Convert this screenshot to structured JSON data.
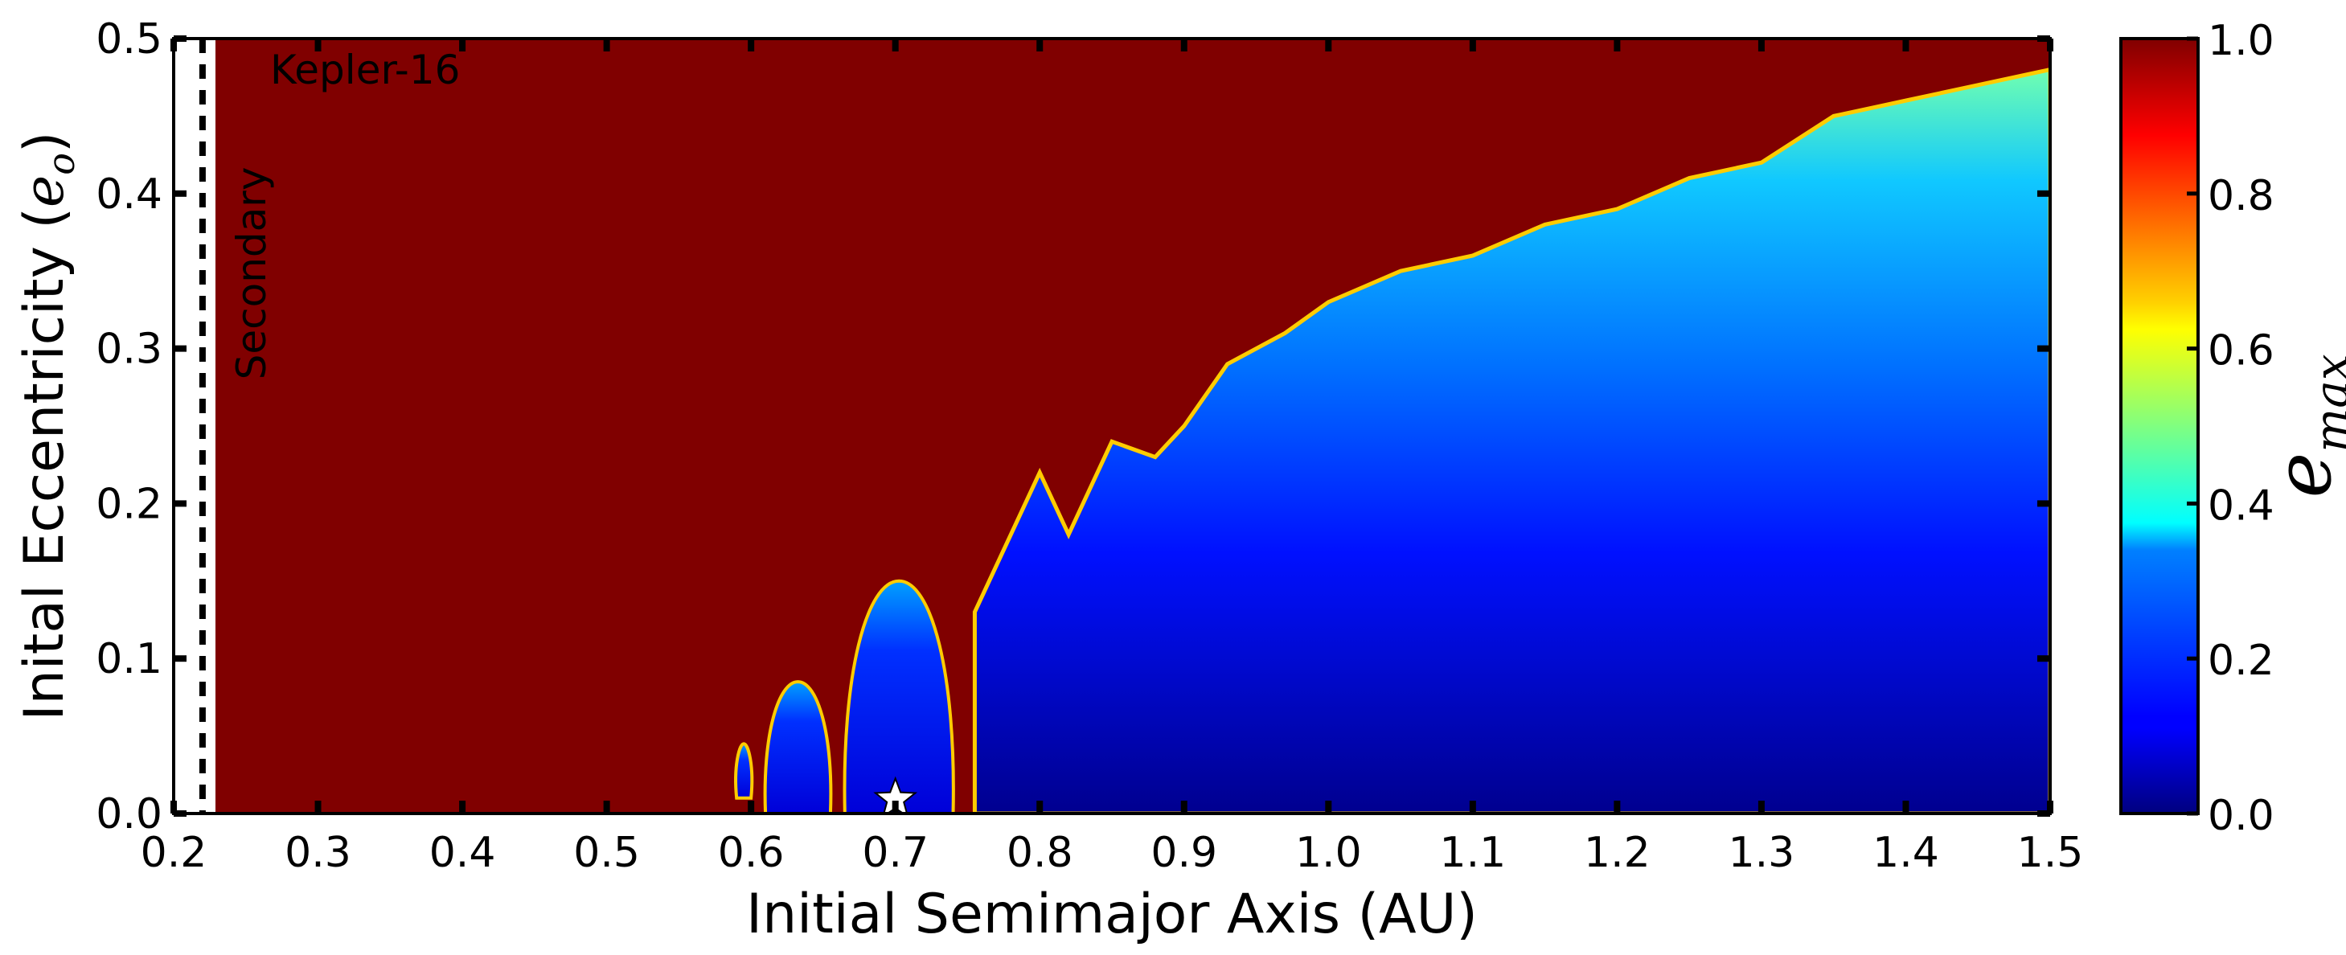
{
  "chart_data": {
    "type": "heatmap",
    "title": "",
    "xlabel": "Initial Semimajor Axis (AU)",
    "ylabel_main": "Inital Eccentricity (",
    "ylabel_var": "e",
    "ylabel_sub": "o",
    "ylabel_end": ")",
    "xlim": [
      0.2,
      1.5
    ],
    "ylim": [
      0.0,
      0.5
    ],
    "x_ticks": [
      "0.2",
      "0.3",
      "0.4",
      "0.5",
      "0.6",
      "0.7",
      "0.8",
      "0.9",
      "1.0",
      "1.1",
      "1.2",
      "1.3",
      "1.4",
      "1.5"
    ],
    "y_ticks": [
      "0.0",
      "0.1",
      "0.2",
      "0.3",
      "0.4",
      "0.5"
    ],
    "colorbar": {
      "label_var": "e",
      "label_sub": "max",
      "range": [
        0.0,
        1.0
      ],
      "ticks": [
        "0.0",
        "0.2",
        "0.4",
        "0.6",
        "0.8",
        "1.0"
      ],
      "colormap": "jet"
    },
    "annotations": {
      "system": "Kepler-16",
      "secondary_label": "Secondary",
      "secondary_a": 0.22,
      "unstable_exclusion_a": 0.23,
      "planet_marker": {
        "a": 0.7,
        "e": 0.007
      }
    },
    "stability_boundary": {
      "description_free": false,
      "a": [
        0.8,
        0.82,
        0.85,
        0.88,
        0.9,
        0.93,
        0.97,
        1.0,
        1.05,
        1.1,
        1.15,
        1.2,
        1.25,
        1.3,
        1.35,
        1.4,
        1.45,
        1.5
      ],
      "e_max_stable": [
        0.22,
        0.18,
        0.24,
        0.23,
        0.25,
        0.29,
        0.31,
        0.33,
        0.35,
        0.36,
        0.38,
        0.39,
        0.41,
        0.42,
        0.45,
        0.46,
        0.47,
        0.48
      ]
    },
    "stable_islands": [
      {
        "a_range": [
          0.59,
          0.6
        ],
        "e_range": [
          0.01,
          0.045
        ]
      },
      {
        "a_range": [
          0.61,
          0.655
        ],
        "e_range": [
          0.0,
          0.085
        ]
      },
      {
        "a_range": [
          0.665,
          0.74
        ],
        "e_range": [
          0.0,
          0.15
        ]
      },
      {
        "a_range": [
          0.745,
          0.8
        ],
        "e_range": [
          0.0,
          0.22
        ]
      }
    ],
    "colors": {
      "unstable": "#800000",
      "frame": "#000000",
      "background": "#ffffff"
    }
  }
}
